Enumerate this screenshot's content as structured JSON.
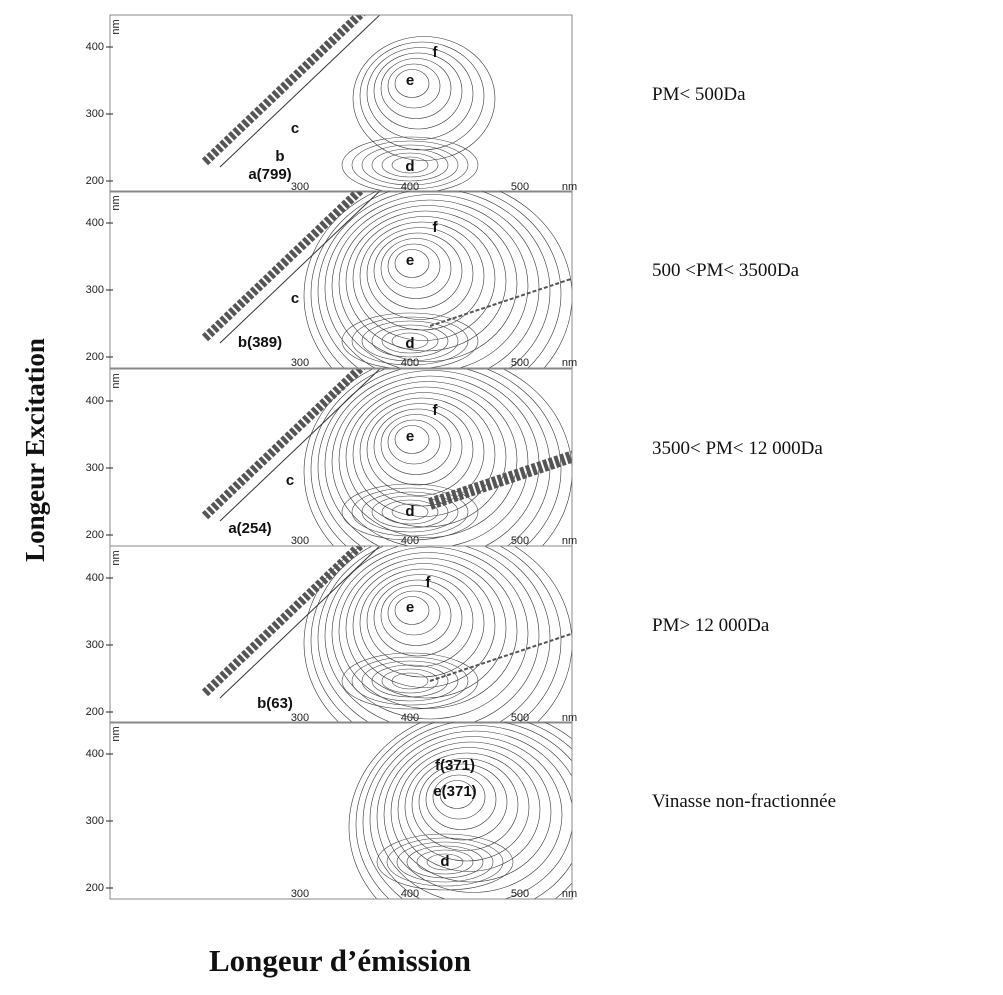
{
  "axis_titles": {
    "y": "Longeur Excitation",
    "x": "Longeur d’émission"
  },
  "axes": {
    "y_unit": "nm",
    "y_ticks": [
      "400",
      "300",
      "200"
    ],
    "x_ticks": [
      "300",
      "400",
      "500",
      "nm"
    ]
  },
  "panels": [
    {
      "fraction": "PM< 500Da",
      "peaks": [
        "f",
        "e",
        "c",
        "b",
        "d",
        "a(799)"
      ]
    },
    {
      "fraction": "500 <PM< 3500Da",
      "peaks": [
        "f",
        "e",
        "c",
        "b(389)",
        "d"
      ]
    },
    {
      "fraction": "3500< PM< 12 000Da",
      "peaks": [
        "f",
        "e",
        "c",
        "d",
        "a(254)"
      ]
    },
    {
      "fraction": "PM> 12 000Da",
      "peaks": [
        "f",
        "e",
        "b(63)"
      ]
    },
    {
      "fraction": "Vinasse non-fractionnée",
      "peaks": [
        "f(371)",
        "e(371)",
        "d"
      ]
    }
  ]
}
